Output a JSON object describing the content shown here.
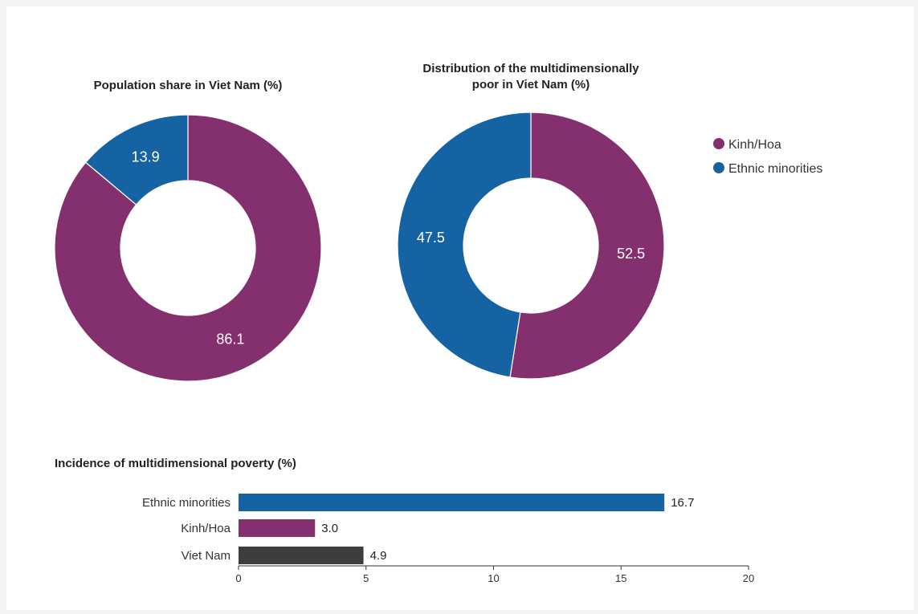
{
  "colors": {
    "kinh_hoa": "#84306f",
    "ethnic_minorities": "#1663a3",
    "viet_nam": "#3d3d3f"
  },
  "legend": [
    {
      "label": "Kinh/Hoa",
      "color": "#84306f"
    },
    {
      "label": "Ethnic minorities",
      "color": "#1663a3"
    }
  ],
  "chart_data": [
    {
      "type": "pie",
      "title": "Population share in Viet Nam (%)",
      "categories": [
        "Kinh/Hoa",
        "Ethnic minorities"
      ],
      "values": [
        86.1,
        13.9
      ],
      "value_labels": [
        "86.1",
        "13.9"
      ],
      "donut": true
    },
    {
      "type": "pie",
      "title_lines": [
        "Distribution of the multidimensionally",
        "poor in Viet Nam (%)"
      ],
      "categories": [
        "Kinh/Hoa",
        "Ethnic minorities"
      ],
      "values": [
        52.5,
        47.5
      ],
      "value_labels": [
        "52.5",
        "47.5"
      ],
      "donut": true
    },
    {
      "type": "bar",
      "orientation": "horizontal",
      "title": "Incidence of multidimensional poverty (%)",
      "categories": [
        "Ethnic minorities",
        "Kinh/Hoa",
        "Viet Nam"
      ],
      "values": [
        16.7,
        3.0,
        4.9
      ],
      "value_labels": [
        "16.7",
        "3.0",
        "4.9"
      ],
      "xlim": [
        0,
        20
      ],
      "xticks": [
        "0",
        "5",
        "10",
        "15",
        "20"
      ],
      "grid": false
    }
  ]
}
